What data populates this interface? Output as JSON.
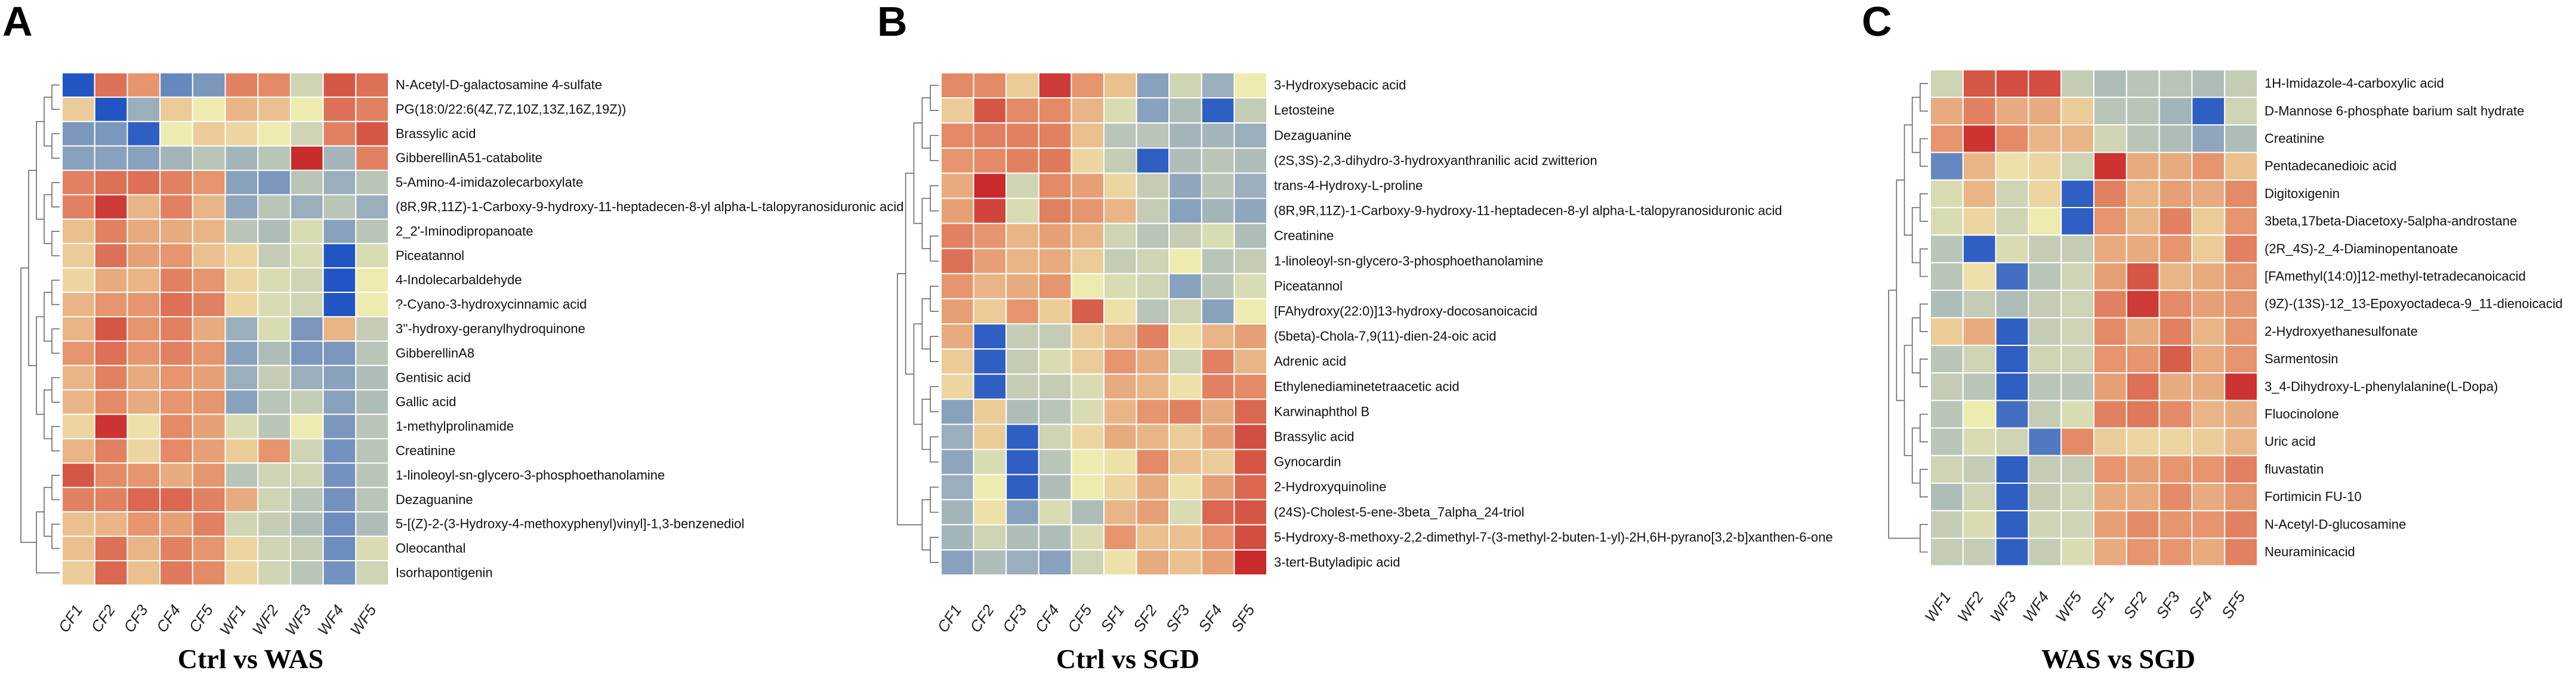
{
  "figure": {
    "color_scale": {
      "low": "#2255c4",
      "mid_low": "#8fa6bd",
      "mid": "#eeebb0",
      "mid_high": "#e58a66",
      "high": "#c92a2c"
    }
  },
  "chart_data": [
    {
      "type": "heatmap",
      "panel_letter": "A",
      "title": "Ctrl vs WAS",
      "columns": [
        "CF1",
        "CF2",
        "CF3",
        "CF4",
        "CF5",
        "WF1",
        "WF2",
        "WF3",
        "WF4",
        "WF5"
      ],
      "rows": [
        "N-Acetyl-D-galactosamine 4-sulfate",
        "PG(18:0/22:6(4Z,7Z,10Z,13Z,16Z,19Z))",
        "Brassylic acid",
        "GibberellinA51-catabolite",
        "5-Amino-4-imidazolecarboxylate",
        "(8R,9R,11Z)-1-Carboxy-9-hydroxy-11-heptadecen-8-yl alpha-L-talopyranosiduronic acid",
        "2_2'-Iminodipropanoate",
        "Piceatannol",
        "4-Indolecarbaldehyde",
        "?-Cyano-3-hydroxycinnamic acid",
        "3''-hydroxy-geranylhydroquinone",
        "GibberellinA8",
        "Gentisic acid",
        "Gallic acid",
        "1-methylprolinamide",
        "Creatinine",
        "1-linoleoyl-sn-glycero-3-phosphoethanolamine",
        "Dezaguanine",
        "5-[(Z)-2-(3-Hydroxy-4-methoxyphenyl)vinyl]-1,3-benzenediol",
        "Oleocanthal",
        "Isorhapontigenin"
      ],
      "values": [
        [
          -2.5,
          1.2,
          0.8,
          -1.5,
          -1.2,
          1.0,
          0.9,
          -0.3,
          1.5,
          1.2
        ],
        [
          0.3,
          -2.5,
          -0.8,
          0.3,
          0.0,
          0.5,
          0.4,
          0.0,
          1.2,
          1.0
        ],
        [
          -1.2,
          -1.2,
          -2.3,
          0.0,
          0.3,
          0.2,
          0.0,
          -0.3,
          1.0,
          1.5
        ],
        [
          -1.0,
          -1.0,
          -1.0,
          -0.7,
          -0.5,
          -0.7,
          -0.5,
          2.0,
          -0.7,
          1.0
        ],
        [
          1.0,
          1.2,
          1.2,
          1.0,
          0.8,
          -1.0,
          -1.2,
          -0.5,
          -0.8,
          -0.5
        ],
        [
          1.0,
          1.8,
          0.5,
          1.0,
          0.5,
          -0.9,
          -0.5,
          -0.8,
          -0.5,
          -0.8
        ],
        [
          0.4,
          1.0,
          0.6,
          0.6,
          0.5,
          -0.5,
          -0.6,
          -0.2,
          -1.0,
          -0.5
        ],
        [
          0.3,
          1.2,
          0.7,
          0.8,
          0.4,
          0.2,
          -0.4,
          -0.2,
          -2.6,
          -0.2
        ],
        [
          0.2,
          0.6,
          0.5,
          1.0,
          0.8,
          0.2,
          -0.2,
          -0.3,
          -2.6,
          0.0
        ],
        [
          0.5,
          0.8,
          0.8,
          1.2,
          1.0,
          0.2,
          -0.2,
          -0.3,
          -2.6,
          0.0
        ],
        [
          0.5,
          1.5,
          0.8,
          1.0,
          0.6,
          -0.8,
          -0.2,
          -1.2,
          0.5,
          -0.4
        ],
        [
          0.8,
          1.2,
          0.8,
          1.0,
          0.8,
          -1.0,
          -0.6,
          -1.2,
          -1.2,
          -0.5
        ],
        [
          0.5,
          1.0,
          0.6,
          0.8,
          0.7,
          -0.8,
          -0.4,
          -0.8,
          -1.0,
          -0.6
        ],
        [
          0.5,
          0.9,
          0.6,
          0.8,
          0.8,
          -1.0,
          -0.5,
          -0.4,
          -1.0,
          -0.6
        ],
        [
          0.2,
          1.9,
          0.1,
          0.9,
          0.7,
          -0.2,
          -0.5,
          0.0,
          -1.2,
          -0.5
        ],
        [
          0.5,
          1.0,
          0.2,
          0.9,
          0.7,
          0.3,
          0.8,
          -0.3,
          -1.3,
          -0.5
        ],
        [
          1.5,
          0.9,
          0.8,
          0.6,
          0.8,
          -0.5,
          -0.3,
          -0.3,
          -1.3,
          -0.5
        ],
        [
          1.0,
          1.0,
          1.3,
          1.3,
          1.0,
          0.6,
          -0.3,
          -0.5,
          -1.3,
          -0.5
        ],
        [
          0.4,
          0.5,
          0.8,
          0.7,
          1.0,
          -0.3,
          -0.4,
          -0.6,
          -1.4,
          -0.6
        ],
        [
          0.4,
          1.2,
          0.5,
          1.0,
          0.8,
          0.2,
          -0.3,
          -0.4,
          -1.4,
          -0.2
        ],
        [
          0.3,
          1.3,
          0.4,
          1.1,
          0.9,
          0.2,
          -0.3,
          -0.5,
          -1.3,
          -0.3
        ]
      ]
    },
    {
      "type": "heatmap",
      "panel_letter": "B",
      "title": "Ctrl vs SGD",
      "columns": [
        "CF1",
        "CF2",
        "CF3",
        "CF4",
        "CF5",
        "SF1",
        "SF2",
        "SF3",
        "SF4",
        "SF5"
      ],
      "rows": [
        "3-Hydroxysebacic acid",
        "Letosteine",
        "Dezaguanine",
        "(2S,3S)-2,3-dihydro-3-hydroxyanthranilic acid zwitterion",
        "trans-4-Hydroxy-L-proline",
        "(8R,9R,11Z)-1-Carboxy-9-hydroxy-11-heptadecen-8-yl alpha-L-talopyranosiduronic acid",
        "Creatinine",
        "1-linoleoyl-sn-glycero-3-phosphoethanolamine",
        "Piceatannol",
        "[FAhydroxy(22:0)]13-hydroxy-docosanoicacid",
        "(5beta)-Chola-7,9(11)-dien-24-oic acid",
        "Adrenic acid",
        "Ethylenediaminetetraacetic acid",
        "Karwinaphthol B",
        "Brassylic acid",
        "Gynocardin",
        "2-Hydroxyquinoline",
        "(24S)-Cholest-5-ene-3beta_7alpha_24-triol",
        "5-Hydroxy-8-methoxy-2,2-dimethyl-7-(3-methyl-2-buten-1-yl)-2H,6H-pyrano[3,2-b]xanthen-6-one",
        "3-tert-Butyladipic acid"
      ],
      "values": [
        [
          0.9,
          0.9,
          0.3,
          1.8,
          0.8,
          0.4,
          -1.0,
          -0.3,
          -0.8,
          0.0
        ],
        [
          0.3,
          1.5,
          0.9,
          0.9,
          0.5,
          -0.2,
          -1.0,
          -0.6,
          -2.3,
          -0.4
        ],
        [
          0.9,
          1.0,
          1.0,
          1.0,
          0.4,
          -0.5,
          -0.5,
          -0.7,
          -0.7,
          -0.8
        ],
        [
          0.8,
          0.9,
          1.0,
          1.1,
          0.2,
          -0.4,
          -2.3,
          -0.6,
          -0.5,
          -0.6
        ],
        [
          0.6,
          2.0,
          -0.3,
          0.9,
          0.7,
          0.2,
          -0.4,
          -0.9,
          -0.5,
          -0.8
        ],
        [
          0.7,
          1.7,
          -0.2,
          1.0,
          0.8,
          0.5,
          -0.4,
          -1.0,
          -0.7,
          -0.9
        ],
        [
          1.0,
          0.8,
          0.5,
          0.7,
          0.5,
          -0.3,
          -0.5,
          -0.4,
          -0.2,
          -0.6
        ],
        [
          1.2,
          0.7,
          0.5,
          0.6,
          0.3,
          -0.4,
          -0.3,
          0.0,
          -0.5,
          -0.4
        ],
        [
          0.8,
          0.5,
          0.6,
          0.8,
          0.0,
          -0.2,
          -0.3,
          -1.0,
          -0.5,
          -0.2
        ],
        [
          0.7,
          0.3,
          0.8,
          0.3,
          1.4,
          0.1,
          -0.5,
          -0.3,
          -1.0,
          0.0
        ],
        [
          0.6,
          -2.3,
          -0.4,
          -0.4,
          0.3,
          0.5,
          1.0,
          0.1,
          0.5,
          0.7
        ],
        [
          0.3,
          -2.3,
          -0.4,
          -0.2,
          0.3,
          0.8,
          0.6,
          -0.3,
          1.0,
          0.5
        ],
        [
          0.2,
          -2.3,
          -0.4,
          -0.4,
          -0.2,
          0.6,
          0.5,
          0.1,
          1.0,
          0.9
        ],
        [
          -1.0,
          0.3,
          -0.6,
          -0.5,
          -0.2,
          0.5,
          0.8,
          1.0,
          0.6,
          1.3
        ],
        [
          -0.8,
          0.3,
          -2.3,
          -0.3,
          0.2,
          0.6,
          0.5,
          0.3,
          0.7,
          1.6
        ],
        [
          -0.9,
          -0.2,
          -2.3,
          -0.5,
          0.0,
          0.1,
          0.9,
          0.4,
          0.3,
          1.5
        ],
        [
          -0.8,
          0.0,
          -2.3,
          -0.6,
          0.0,
          0.2,
          0.6,
          0.1,
          0.7,
          1.3
        ],
        [
          -0.7,
          0.1,
          -1.0,
          -0.2,
          -0.6,
          0.5,
          0.7,
          -0.2,
          1.3,
          1.5
        ],
        [
          -0.7,
          -0.3,
          -0.6,
          -0.6,
          -0.2,
          0.8,
          0.4,
          0.4,
          0.8,
          1.6
        ],
        [
          -1.0,
          -0.6,
          -0.8,
          -1.0,
          -0.3,
          0.1,
          0.6,
          0.4,
          0.7,
          2.0
        ]
      ]
    },
    {
      "type": "heatmap",
      "panel_letter": "C",
      "title": "WAS vs SGD",
      "columns": [
        "WF1",
        "WF2",
        "WF3",
        "WF4",
        "WF5",
        "SF1",
        "SF2",
        "SF3",
        "SF4",
        "SF5"
      ],
      "rows": [
        "1H-Imidazole-4-carboxylic acid",
        "D-Mannose 6-phosphate barium salt hydrate",
        "Creatinine",
        "Pentadecanedioic acid",
        "Digitoxigenin",
        "3beta,17beta-Diacetoxy-5alpha-androstane",
        "(2R_4S)-2_4-Diaminopentanoate",
        "[FAmethyl(14:0)]12-methyl-tetradecanoicacid",
        "(9Z)-(13S)-12_13-Epoxyoctadeca-9_11-dienoicacid",
        "2-Hydroxyethanesulfonate",
        "Sarmentosin",
        "3_4-Dihydroxy-L-phenylalanine(L-Dopa)",
        "Fluocinolone",
        "Uric acid",
        "fluvastatin",
        "Fortimicin FU-10",
        "N-Acetyl-D-glucosamine",
        "Neuraminicacid"
      ],
      "values": [
        [
          -0.3,
          1.5,
          1.6,
          1.6,
          -0.4,
          -0.6,
          -0.5,
          -0.5,
          -0.6,
          -0.4
        ],
        [
          0.6,
          1.0,
          0.6,
          0.6,
          0.3,
          -0.5,
          -0.5,
          -0.7,
          -2.3,
          -0.3
        ],
        [
          0.8,
          1.9,
          0.9,
          0.5,
          0.5,
          -0.3,
          -0.5,
          -0.6,
          -0.9,
          -0.6
        ],
        [
          -1.5,
          0.5,
          0.1,
          0.2,
          -0.3,
          1.9,
          0.6,
          0.6,
          0.8,
          0.4
        ],
        [
          -0.2,
          0.5,
          -0.3,
          0.2,
          -2.3,
          1.0,
          0.5,
          0.7,
          0.6,
          0.9
        ],
        [
          -0.2,
          0.2,
          -0.3,
          0.0,
          -2.3,
          0.8,
          0.5,
          1.0,
          0.3,
          0.8
        ],
        [
          -0.5,
          -2.3,
          -0.2,
          -0.4,
          -0.4,
          0.6,
          0.6,
          0.8,
          0.3,
          1.0
        ],
        [
          -0.5,
          0.1,
          -2.0,
          -0.5,
          -0.3,
          0.7,
          1.5,
          0.5,
          0.6,
          0.8
        ],
        [
          -0.6,
          -0.4,
          -0.6,
          -0.4,
          -0.3,
          1.0,
          1.8,
          0.9,
          0.7,
          0.8
        ],
        [
          0.3,
          0.6,
          -2.3,
          -0.4,
          -0.3,
          0.9,
          0.6,
          1.0,
          0.5,
          0.8
        ],
        [
          -0.5,
          -0.3,
          -2.3,
          -0.3,
          -0.3,
          0.8,
          0.8,
          1.4,
          0.6,
          0.8
        ],
        [
          -0.4,
          -0.5,
          -2.3,
          -0.5,
          -0.5,
          0.7,
          1.2,
          0.6,
          0.6,
          1.9
        ],
        [
          -0.5,
          0.0,
          -2.0,
          -0.4,
          -0.2,
          1.0,
          1.1,
          0.9,
          0.5,
          0.6
        ],
        [
          -0.5,
          -0.2,
          -0.3,
          -1.8,
          0.9,
          0.3,
          0.2,
          0.2,
          0.3,
          0.5
        ],
        [
          -0.3,
          -0.4,
          -2.3,
          -0.4,
          -0.4,
          0.8,
          0.7,
          0.8,
          0.8,
          1.0
        ],
        [
          -0.6,
          -0.3,
          -2.3,
          -0.4,
          -0.3,
          0.6,
          0.6,
          0.9,
          0.6,
          0.8
        ],
        [
          -0.4,
          -0.2,
          -2.3,
          -0.3,
          -0.3,
          0.7,
          0.9,
          0.8,
          0.8,
          1.0
        ],
        [
          -0.4,
          -0.4,
          -2.3,
          -0.4,
          -0.2,
          0.6,
          0.8,
          0.8,
          0.6,
          1.0
        ]
      ]
    }
  ]
}
